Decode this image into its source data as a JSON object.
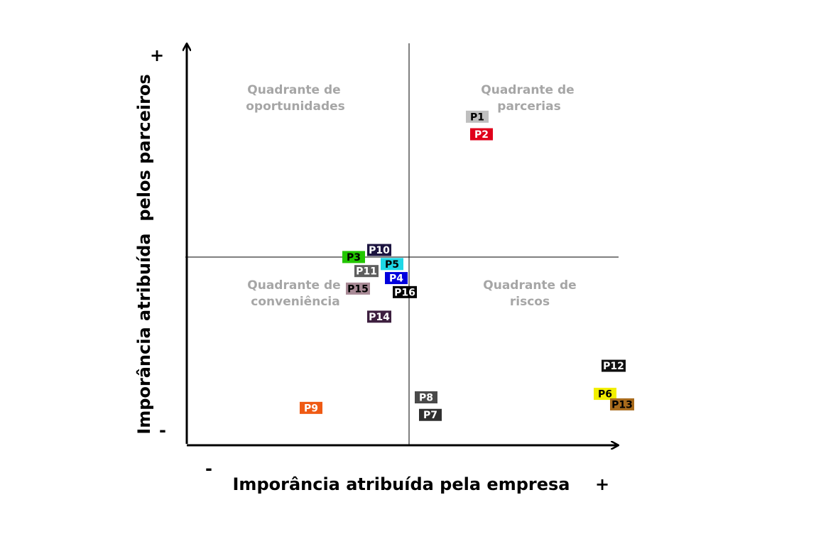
{
  "chart_data": {
    "type": "scatter",
    "title": "",
    "xlabel": "Imporância atribuída pela empresa",
    "ylabel": "Imporância atribuída  pelos parceiros",
    "x_min_label": "-",
    "x_max_label": "+",
    "y_min_label": "-",
    "y_max_label": "+",
    "xlim": [
      0,
      100
    ],
    "ylim": [
      0,
      100
    ],
    "divider_x": 50,
    "divider_y": 49,
    "grid": false,
    "quadrants": [
      {
        "name": "opportunities",
        "lines": [
          "Quadrante de",
          "oportunidades"
        ]
      },
      {
        "name": "partnerships",
        "lines": [
          "Quadrante de",
          "parcerias"
        ]
      },
      {
        "name": "convenience",
        "lines": [
          "Quadrante de",
          "conveniência"
        ]
      },
      {
        "name": "risks",
        "lines": [
          "Quadrante de",
          "riscos"
        ]
      }
    ],
    "points": [
      {
        "label": "P1",
        "x": 66,
        "y": 89,
        "color": "#bfbfbf",
        "text_color": "#000000"
      },
      {
        "label": "P2",
        "x": 67,
        "y": 84,
        "color": "#e0001b",
        "text_color": "#ffffff"
      },
      {
        "label": "P3",
        "x": 37,
        "y": 49,
        "color": "#22c600",
        "text_color": "#000000"
      },
      {
        "label": "P4",
        "x": 47,
        "y": 43,
        "color": "#0000dd",
        "text_color": "#ffffff"
      },
      {
        "label": "P5",
        "x": 46,
        "y": 47,
        "color": "#1ed7e6",
        "text_color": "#000000"
      },
      {
        "label": "P6",
        "x": 96,
        "y": 10,
        "color": "#f2ef00",
        "text_color": "#000000"
      },
      {
        "label": "P7",
        "x": 55,
        "y": 4,
        "color": "#2f2f2f",
        "text_color": "#ffffff"
      },
      {
        "label": "P8",
        "x": 54,
        "y": 9,
        "color": "#4a4a4a",
        "text_color": "#ffffff"
      },
      {
        "label": "P9",
        "x": 27,
        "y": 6,
        "color": "#ef5a14",
        "text_color": "#ffffff"
      },
      {
        "label": "P10",
        "x": 43,
        "y": 51,
        "color": "#1c1440",
        "text_color": "#ffffff"
      },
      {
        "label": "P11",
        "x": 40,
        "y": 45,
        "color": "#5e5e5e",
        "text_color": "#ffffff"
      },
      {
        "label": "P12",
        "x": 98,
        "y": 18,
        "color": "#111111",
        "text_color": "#ffffff"
      },
      {
        "label": "P13",
        "x": 100,
        "y": 7,
        "color": "#a86a1c",
        "text_color": "#000000"
      },
      {
        "label": "P14",
        "x": 43,
        "y": 32,
        "color": "#3d1f3f",
        "text_color": "#ffffff"
      },
      {
        "label": "P15",
        "x": 38,
        "y": 40,
        "color": "#a98a96",
        "text_color": "#000000"
      },
      {
        "label": "P16",
        "x": 49,
        "y": 39,
        "color": "#000000",
        "text_color": "#ffffff"
      }
    ]
  }
}
